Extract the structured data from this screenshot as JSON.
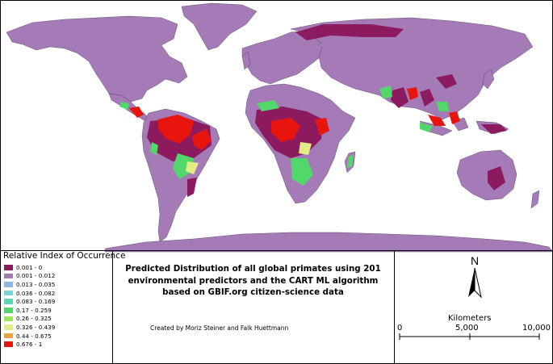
{
  "legend": {
    "title": "Relative Index of Occurrence",
    "classes": [
      {
        "label": "0.001 - 0",
        "color": "#8b1a5e"
      },
      {
        "label": "0.001 - 0.012",
        "color": "#a57bb7"
      },
      {
        "label": "0.013 - 0.035",
        "color": "#8fb7e8"
      },
      {
        "label": "0.036 - 0.082",
        "color": "#74d6d8"
      },
      {
        "label": "0.083 - 0.169",
        "color": "#5ad6b0"
      },
      {
        "label": "0.17 - 0.259",
        "color": "#52d86a"
      },
      {
        "label": "0.26 - 0.325",
        "color": "#98e85a"
      },
      {
        "label": "0.326 - 0.439",
        "color": "#e3ec84"
      },
      {
        "label": "0.44 - 0.675",
        "color": "#f0a03c"
      },
      {
        "label": "0.676 - 1",
        "color": "#e8150f"
      }
    ]
  },
  "title": {
    "line1": "Predicted Distribution of all global primates using 201",
    "line2": "environmental predictors and the CART ML algorithm",
    "line3": "based on GBIF.org citizen-science data"
  },
  "credit": "Created by Moriz Steiner and Falk Huettmann",
  "north_arrow": {
    "label": "N",
    "icon": "north-arrow-icon"
  },
  "scale_bar": {
    "units": "Kilometers",
    "ticks": [
      "0",
      "5,000",
      "10,000"
    ]
  },
  "colors": {
    "land": "#a57bb7",
    "borders": "#4b3a55",
    "background": "#ffffff"
  }
}
